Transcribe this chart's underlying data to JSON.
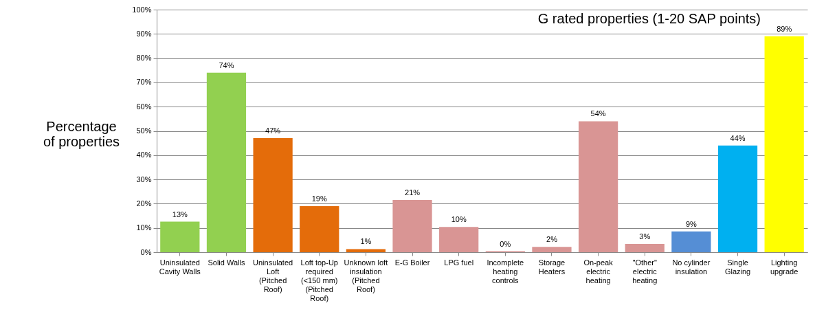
{
  "chart_data": {
    "type": "bar",
    "title": "G rated properties (1-20 SAP points)",
    "ylabel": "Percentage of properties",
    "categories": [
      "Uninsulated Cavity Walls",
      "Solid Walls",
      "Uninsulated Loft (Pitched Roof)",
      "Loft top-Up required (<150 mm) (Pitched Roof)",
      "Unknown loft insulation (Pitched Roof)",
      "E-G Boiler",
      "LPG fuel",
      "Incomplete heating controls",
      "Storage Heaters",
      "On-peak electric heating",
      "\"Other\" electric heating",
      "No cylinder insulation",
      "Single Glazing",
      "Lighting upgrade"
    ],
    "values": [
      12.6,
      74,
      47,
      19,
      1.3,
      21.5,
      10.4,
      0.4,
      2.2,
      54,
      3.4,
      8.6,
      44,
      89
    ],
    "value_labels": [
      "13%",
      "74%",
      "47%",
      "19%",
      "1%",
      "21%",
      "10%",
      "0%",
      "2%",
      "54%",
      "3%",
      "9%",
      "44%",
      "89%"
    ],
    "colors": [
      "#92d050",
      "#92d050",
      "#e46c0a",
      "#e46c0a",
      "#e46c0a",
      "#d99594",
      "#d99594",
      "#d99594",
      "#d99594",
      "#d99594",
      "#d99594",
      "#558ed5",
      "#00b0f0",
      "#ffff00"
    ],
    "ylim": [
      0,
      100
    ],
    "yticks": [
      {
        "value": 0,
        "label": "0%"
      },
      {
        "value": 10,
        "label": "10%"
      },
      {
        "value": 20,
        "label": "20%"
      },
      {
        "value": 30,
        "label": "30%"
      },
      {
        "value": 40,
        "label": "40%"
      },
      {
        "value": 50,
        "label": "50%"
      },
      {
        "value": 60,
        "label": "60%"
      },
      {
        "value": 70,
        "label": "70%"
      },
      {
        "value": 80,
        "label": "80%"
      },
      {
        "value": 90,
        "label": "90%"
      },
      {
        "value": 100,
        "label": "100%"
      }
    ],
    "grid": "y"
  }
}
